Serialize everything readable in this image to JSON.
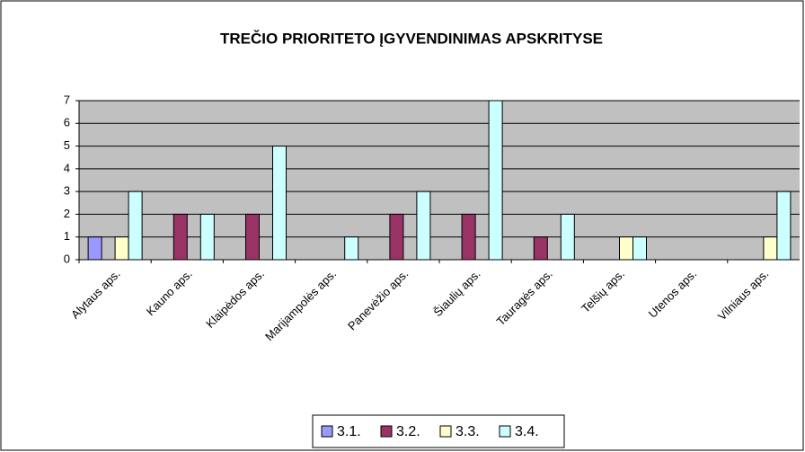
{
  "chart_data": {
    "type": "bar",
    "title": "TREČIO PRIORITETO ĮGYVENDINIMAS APSKRITYSE",
    "categories": [
      "Alytaus aps.",
      "Kauno aps.",
      "Klaipėdos aps.",
      "Marijampolės aps.",
      "Panevėžio aps.",
      "Šiaulių aps.",
      "Tauragės aps.",
      "Telšių aps.",
      "Utenos aps.",
      "Vilniaus aps."
    ],
    "series": [
      {
        "name": "3.1.",
        "color": "#9999ff",
        "values": [
          1,
          0,
          0,
          0,
          0,
          0,
          0,
          0,
          0,
          0
        ]
      },
      {
        "name": "3.2.",
        "color": "#993366",
        "values": [
          0,
          2,
          2,
          0,
          2,
          2,
          1,
          0,
          0,
          0
        ]
      },
      {
        "name": "3.3.",
        "color": "#ffffcc",
        "values": [
          1,
          0,
          0,
          0,
          0,
          0,
          0,
          1,
          0,
          1
        ]
      },
      {
        "name": "3.4.",
        "color": "#ccffff",
        "values": [
          3,
          2,
          5,
          1,
          3,
          7,
          2,
          1,
          0,
          3
        ]
      }
    ],
    "ylim": [
      0,
      7
    ],
    "yticks": [
      0,
      1,
      2,
      3,
      4,
      5,
      6,
      7
    ],
    "grid": true,
    "legend": "bottom",
    "plot_background": "#c0c0c0"
  }
}
